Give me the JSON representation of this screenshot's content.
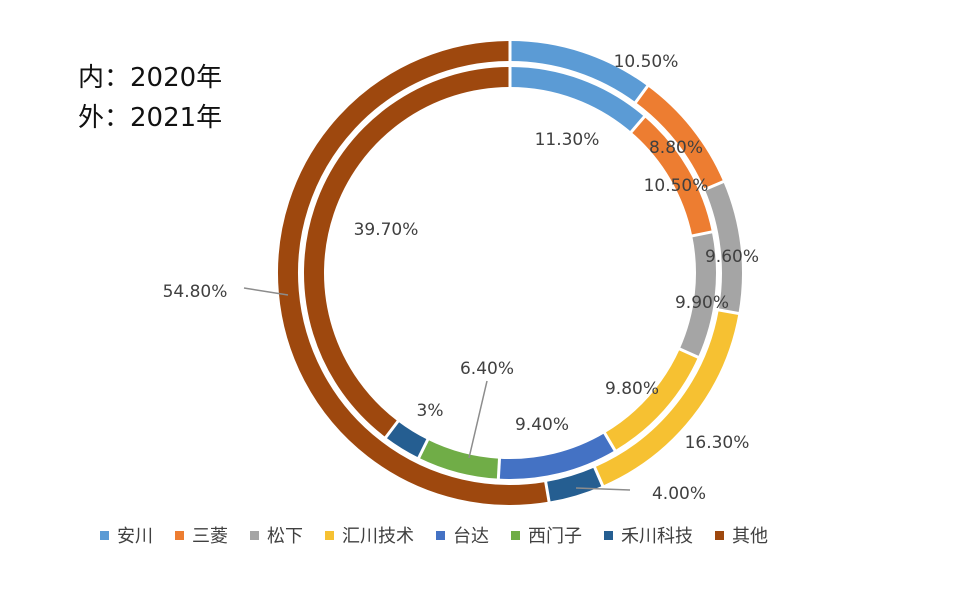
{
  "header": {
    "inner_line": "内：2020年",
    "outer_line": "外：2021年"
  },
  "chart_data": {
    "type": "donut",
    "categories": [
      "安川",
      "三菱",
      "松下",
      "汇川技术",
      "台达",
      "西门子",
      "禾川科技",
      "其他"
    ],
    "colors": [
      "#5b9bd5",
      "#ed7d31",
      "#a5a5a5",
      "#f6c132",
      "#4472c4",
      "#70ad47",
      "#255e91",
      "#9e480e"
    ],
    "series": [
      {
        "ring": "inner",
        "values": [
          11.3,
          10.5,
          9.9,
          9.8,
          9.4,
          6.4,
          3.0,
          39.7
        ],
        "labels": [
          "11.30%",
          "10.50%",
          "9.90%",
          "9.80%",
          "9.40%",
          "6.40%",
          "3%",
          "39.70%"
        ]
      },
      {
        "ring": "outer",
        "values": [
          10.5,
          8.8,
          9.6,
          16.3,
          0,
          0,
          4.0,
          54.8
        ],
        "labels": [
          "10.50%",
          "8.80%",
          "9.60%",
          "16.30%",
          "",
          "",
          "4.00%",
          "54.80%"
        ]
      }
    ],
    "legend_position": "bottom"
  }
}
